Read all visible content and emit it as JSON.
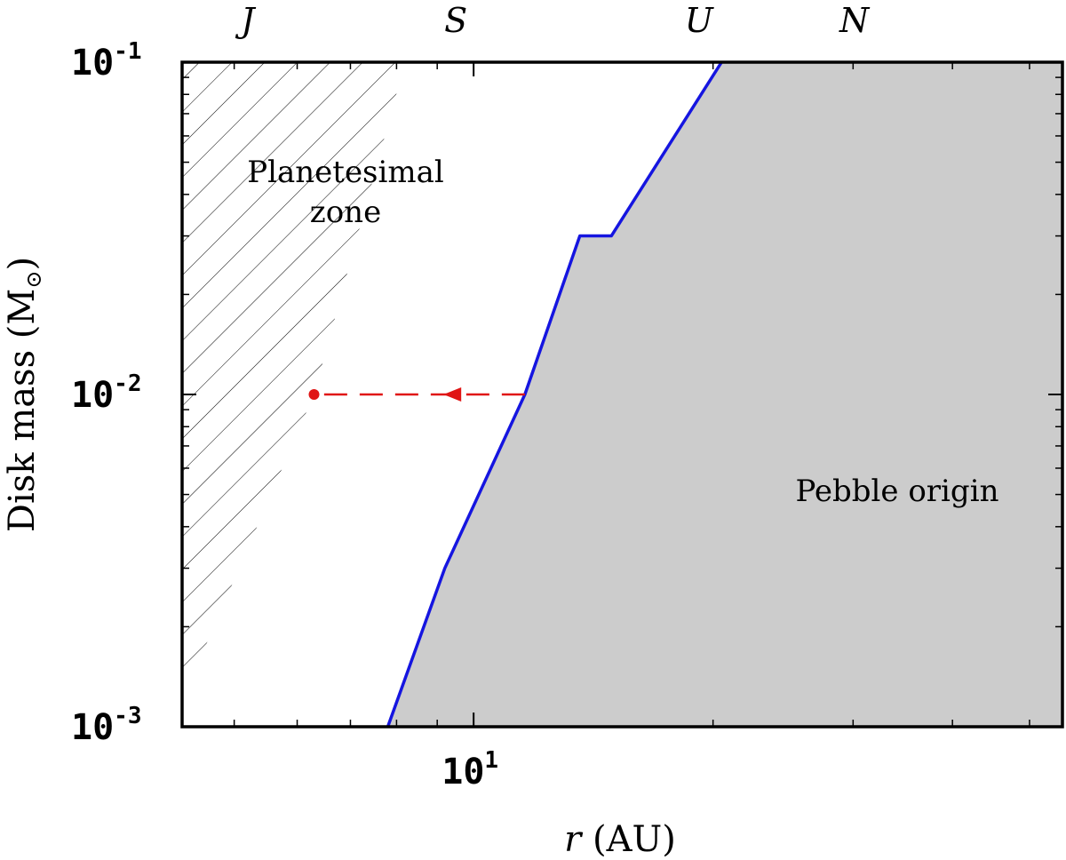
{
  "chart_data": {
    "type": "area",
    "xscale": "log",
    "yscale": "log",
    "xlim": [
      4.3,
      55
    ],
    "ylim": [
      0.001,
      0.1
    ],
    "xlabel_var": "r",
    "xlabel_unit": "(AU)",
    "ylabel_main": "Disk mass (M",
    "ylabel_sub": "⊙",
    "ylabel_close": ")",
    "x_tick_labels": [
      {
        "base": "10",
        "exp": "1",
        "value": 10
      }
    ],
    "y_tick_labels": [
      {
        "base": "10",
        "exp": "-1",
        "value": 0.1
      },
      {
        "base": "10",
        "exp": "-2",
        "value": 0.01
      },
      {
        "base": "10",
        "exp": "-3",
        "value": 0.001
      }
    ],
    "x_minor_ticks": [
      5,
      6,
      7,
      8,
      9,
      20,
      30,
      40,
      50
    ],
    "y_minor_ticks": [
      0.002,
      0.003,
      0.004,
      0.005,
      0.006,
      0.007,
      0.008,
      0.009,
      0.02,
      0.03,
      0.04,
      0.05,
      0.06,
      0.07,
      0.08,
      0.09
    ],
    "planets": [
      {
        "label": "J",
        "r": 5.2
      },
      {
        "label": "S",
        "r": 9.5
      },
      {
        "label": "U",
        "r": 19.2
      },
      {
        "label": "N",
        "r": 30.1
      }
    ],
    "boundary": {
      "x": [
        7.8,
        9.2,
        11.6,
        13.6,
        14.9,
        20.5
      ],
      "y": [
        0.001,
        0.003,
        0.01,
        0.03,
        0.03,
        0.1
      ],
      "color": "#1515e0"
    },
    "pebble_region": {
      "label": "Pebble origin",
      "fill": "#cccccc"
    },
    "planetesimal_region": {
      "label_line1": "Planetesimal",
      "label_line2": "zone",
      "vertices_x": [
        4.3,
        8.2,
        6.3,
        4.3
      ],
      "vertices_y": [
        0.1,
        0.1,
        0.01,
        0.0012
      ]
    },
    "migration_arrow": {
      "x_start": 11.6,
      "x_end": 6.3,
      "y": 0.01,
      "color": "#e01515"
    }
  }
}
